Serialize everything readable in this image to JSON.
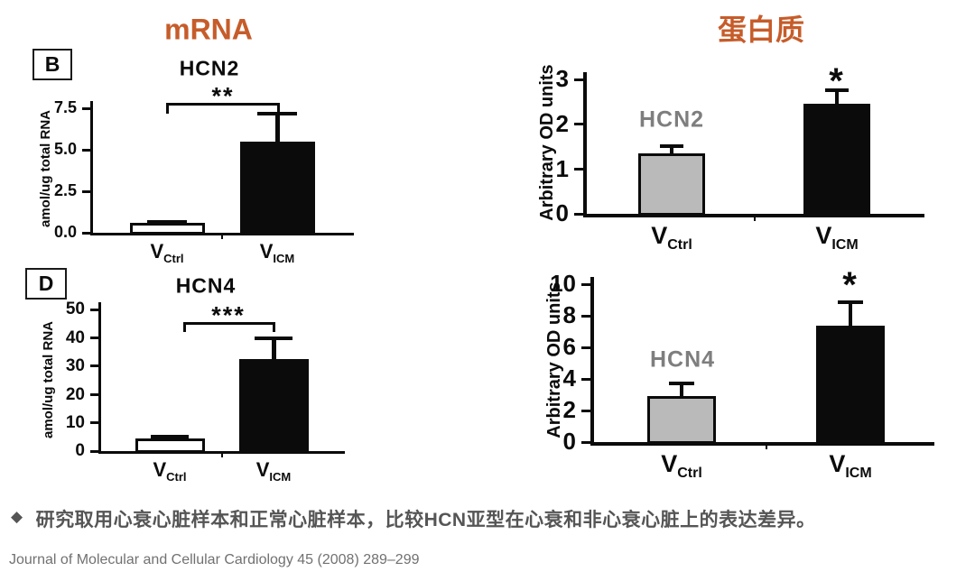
{
  "headers": {
    "mrna": "mRNA",
    "protein": "蛋白质"
  },
  "colors": {
    "accent_orange": "#c65c2a",
    "caption_gray": "#555555",
    "citation_gray": "#717171",
    "bar_black": "#0b0b0b",
    "bar_gray": "#bababa",
    "bar_white": "#ffffff",
    "inner_label_gray": "#7e7e7e"
  },
  "caption": {
    "bullet": "◆",
    "text": "研究取用心衰心脏样本和正常心脏样本，比较HCN亚型在心衰和非心衰心脏上的表达差异。"
  },
  "citation": {
    "text": "Journal of Molecular and Cellular Cardiology 45 (2008) 289–299"
  },
  "chart_data": [
    {
      "id": "hcn2-mrna",
      "type": "bar",
      "panel_label": "B",
      "title": "HCN2",
      "column_group": "mRNA",
      "ylabel": "amol/ug total RNA",
      "ylim": [
        0,
        7.5
      ],
      "yticks": [
        {
          "v": 0,
          "label": "0.0"
        },
        {
          "v": 2.5,
          "label": "2.5"
        },
        {
          "v": 5,
          "label": "5.0"
        },
        {
          "v": 7.5,
          "label": "7.5"
        }
      ],
      "categories": [
        "V_Ctrl",
        "V_ICM"
      ],
      "bars": [
        {
          "label_main": "V",
          "label_sub": "Ctrl",
          "value": 0.6,
          "error_top": 0.75,
          "fill": "#ffffff",
          "outlined": true
        },
        {
          "label_main": "V",
          "label_sub": "ICM",
          "value": 5.5,
          "error_top": 7.3,
          "fill": "#0b0b0b",
          "outlined": false
        }
      ],
      "significance": {
        "marker": "**",
        "style": "bracket"
      }
    },
    {
      "id": "hcn2-protein",
      "type": "bar",
      "title_inner": "HCN2",
      "column_group": "蛋白质",
      "ylabel": "Arbitrary OD units",
      "ylim": [
        0,
        3
      ],
      "yticks": [
        {
          "v": 0,
          "label": "0"
        },
        {
          "v": 1,
          "label": "1"
        },
        {
          "v": 2,
          "label": "2"
        },
        {
          "v": 3,
          "label": "3"
        }
      ],
      "categories": [
        "V_Ctrl",
        "V_ICM"
      ],
      "bars": [
        {
          "label_main": "V",
          "label_sub": "Ctrl",
          "value": 1.35,
          "error_top": 1.55,
          "fill": "#bababa",
          "outlined": true
        },
        {
          "label_main": "V",
          "label_sub": "ICM",
          "value": 2.45,
          "error_top": 2.8,
          "fill": "#0b0b0b",
          "outlined": false
        }
      ],
      "significance": {
        "marker": "*",
        "style": "star"
      }
    },
    {
      "id": "hcn4-mrna",
      "type": "bar",
      "panel_label": "D",
      "title": "HCN4",
      "column_group": "mRNA",
      "ylabel": "amol/ug total RNA",
      "ylim": [
        0,
        50
      ],
      "yticks": [
        {
          "v": 0,
          "label": "0"
        },
        {
          "v": 10,
          "label": "10"
        },
        {
          "v": 20,
          "label": "20"
        },
        {
          "v": 30,
          "label": "30"
        },
        {
          "v": 40,
          "label": "40"
        },
        {
          "v": 50,
          "label": "50"
        }
      ],
      "categories": [
        "V_Ctrl",
        "V_ICM"
      ],
      "bars": [
        {
          "label_main": "V",
          "label_sub": "Ctrl",
          "value": 4.5,
          "error_top": 5.8,
          "fill": "#ffffff",
          "outlined": true
        },
        {
          "label_main": "V",
          "label_sub": "ICM",
          "value": 32.5,
          "error_top": 40.5,
          "fill": "#0b0b0b",
          "outlined": false
        }
      ],
      "significance": {
        "marker": "***",
        "style": "bracket"
      }
    },
    {
      "id": "hcn4-protein",
      "type": "bar",
      "title_inner": "HCN4",
      "column_group": "蛋白质",
      "ylabel": "Arbitrary OD units",
      "ylim": [
        0,
        10
      ],
      "yticks": [
        {
          "v": 0,
          "label": "0"
        },
        {
          "v": 2,
          "label": "2"
        },
        {
          "v": 4,
          "label": "4"
        },
        {
          "v": 6,
          "label": "6"
        },
        {
          "v": 8,
          "label": "8"
        },
        {
          "v": 10,
          "label": "10"
        }
      ],
      "categories": [
        "V_Ctrl",
        "V_ICM"
      ],
      "bars": [
        {
          "label_main": "V",
          "label_sub": "Ctrl",
          "value": 2.9,
          "error_top": 3.85,
          "fill": "#bababa",
          "outlined": true
        },
        {
          "label_main": "V",
          "label_sub": "ICM",
          "value": 7.35,
          "error_top": 9.0,
          "fill": "#0b0b0b",
          "outlined": false
        }
      ],
      "significance": {
        "marker": "*",
        "style": "star"
      }
    }
  ]
}
